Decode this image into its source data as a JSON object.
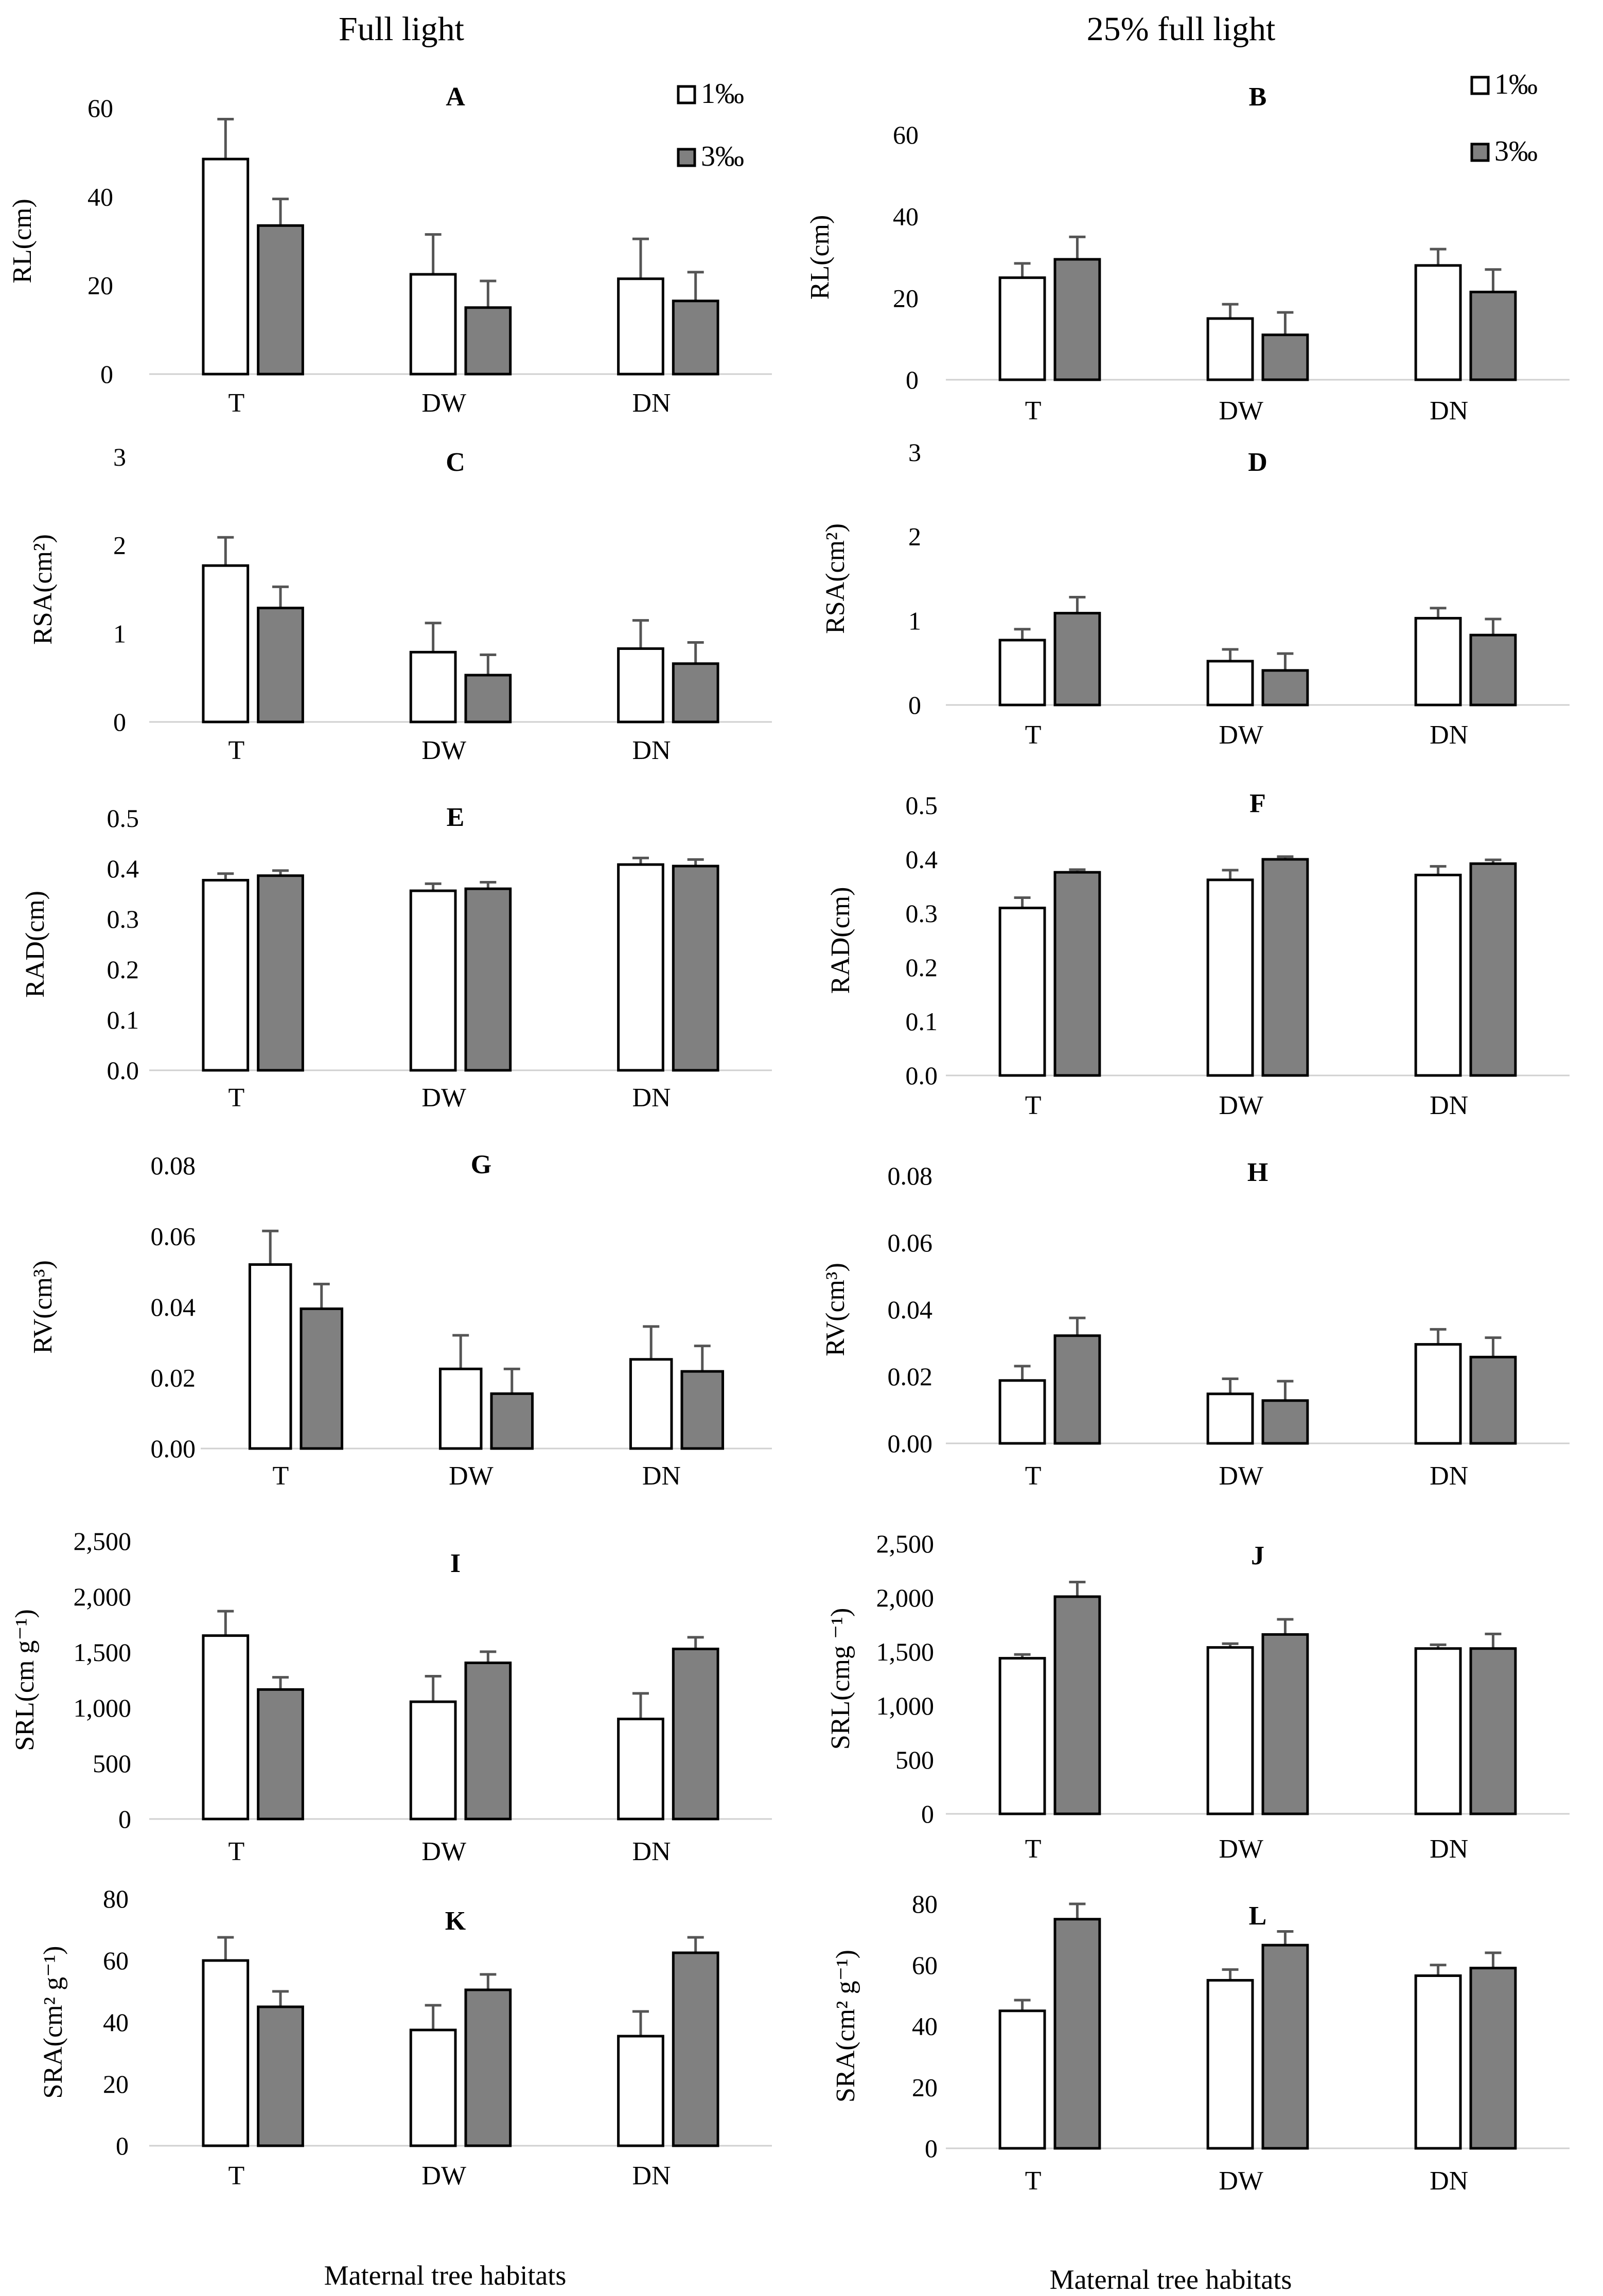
{
  "column_headers": [
    "Full light",
    "25% full light"
  ],
  "legend": [
    {
      "label": "1‰",
      "color": "#ffffff"
    },
    {
      "label": "3‰",
      "color": "#808080"
    }
  ],
  "xlabels": [
    "Maternal tree habitats",
    "Maternal tree habitats"
  ],
  "chart_data": [
    {
      "panel": "A",
      "type": "bar",
      "ylabel": "RL(cm)",
      "categories": [
        "T",
        "DW",
        "DN"
      ],
      "ylim": [
        0,
        60
      ],
      "yticks": [
        "0",
        "20",
        "40",
        "60"
      ],
      "series": [
        {
          "name": "1‰",
          "values": [
            48.5,
            22.5,
            21.5
          ],
          "errors": [
            9,
            9,
            9
          ]
        },
        {
          "name": "3‰",
          "values": [
            33.5,
            15,
            16.5
          ],
          "errors": [
            6,
            6,
            6.5
          ]
        }
      ]
    },
    {
      "panel": "B",
      "type": "bar",
      "ylabel": "RL(cm)",
      "categories": [
        "T",
        "DW",
        "DN"
      ],
      "ylim": [
        0,
        60
      ],
      "yticks": [
        "0",
        "20",
        "40",
        "60"
      ],
      "series": [
        {
          "name": "1‰",
          "values": [
            25,
            15,
            28
          ],
          "errors": [
            3.5,
            3.5,
            4
          ]
        },
        {
          "name": "3‰",
          "values": [
            29.5,
            11,
            21.5
          ],
          "errors": [
            5.5,
            5.5,
            5.5
          ]
        }
      ]
    },
    {
      "panel": "C",
      "type": "bar",
      "ylabel": "RSA(cm²)",
      "categories": [
        "T",
        "DW",
        "DN"
      ],
      "ylim": [
        0,
        3
      ],
      "yticks": [
        "0",
        "1",
        "2",
        "3"
      ],
      "series": [
        {
          "name": "1‰",
          "values": [
            1.77,
            0.79,
            0.83
          ],
          "errors": [
            0.32,
            0.33,
            0.32
          ]
        },
        {
          "name": "3‰",
          "values": [
            1.29,
            0.53,
            0.66
          ],
          "errors": [
            0.24,
            0.23,
            0.24
          ]
        }
      ]
    },
    {
      "panel": "D",
      "type": "bar",
      "ylabel": "RSA(cm²)",
      "categories": [
        "T",
        "DW",
        "DN"
      ],
      "ylim": [
        0,
        3
      ],
      "yticks": [
        "0",
        "1",
        "2",
        "3"
      ],
      "series": [
        {
          "name": "1‰",
          "values": [
            0.77,
            0.52,
            1.03
          ],
          "errors": [
            0.13,
            0.14,
            0.12
          ]
        },
        {
          "name": "3‰",
          "values": [
            1.09,
            0.41,
            0.83
          ],
          "errors": [
            0.19,
            0.2,
            0.19
          ]
        }
      ]
    },
    {
      "panel": "E",
      "type": "bar",
      "ylabel": "RAD(cm)",
      "categories": [
        "T",
        "DW",
        "DN"
      ],
      "ylim": [
        0,
        0.5
      ],
      "yticks": [
        "0.0",
        "0.1",
        "0.2",
        "0.3",
        "0.4",
        "0.5"
      ],
      "series": [
        {
          "name": "1‰",
          "values": [
            0.377,
            0.356,
            0.408
          ],
          "errors": [
            0.013,
            0.014,
            0.013
          ]
        },
        {
          "name": "3‰",
          "values": [
            0.386,
            0.36,
            0.405
          ],
          "errors": [
            0.01,
            0.013,
            0.013
          ]
        }
      ]
    },
    {
      "panel": "F",
      "type": "bar",
      "ylabel": "RAD(cm)",
      "categories": [
        "T",
        "DW",
        "DN"
      ],
      "ylim": [
        0,
        0.5
      ],
      "yticks": [
        "0.0",
        "0.1",
        "0.2",
        "0.3",
        "0.4",
        "0.5"
      ],
      "series": [
        {
          "name": "1‰",
          "values": [
            0.31,
            0.362,
            0.371
          ],
          "errors": [
            0.019,
            0.018,
            0.016
          ]
        },
        {
          "name": "3‰",
          "values": [
            0.376,
            0.4,
            0.392
          ],
          "errors": [
            0.005,
            0.005,
            0.007
          ]
        }
      ]
    },
    {
      "panel": "G",
      "type": "bar",
      "ylabel": "RV(cm³)",
      "categories": [
        "T",
        "DW",
        "DN"
      ],
      "ylim": [
        0,
        0.08
      ],
      "yticks": [
        "0.00",
        "0.02",
        "0.04",
        "0.06",
        "0.08"
      ],
      "series": [
        {
          "name": "1‰",
          "values": [
            0.052,
            0.0225,
            0.0252
          ],
          "errors": [
            0.0095,
            0.0095,
            0.0093
          ]
        },
        {
          "name": "3‰",
          "values": [
            0.0395,
            0.0155,
            0.0218
          ],
          "errors": [
            0.007,
            0.007,
            0.0072
          ]
        }
      ]
    },
    {
      "panel": "H",
      "type": "bar",
      "ylabel": "RV(cm³)",
      "categories": [
        "T",
        "DW",
        "DN"
      ],
      "ylim": [
        0,
        0.08
      ],
      "yticks": [
        "0.00",
        "0.02",
        "0.04",
        "0.06",
        "0.08"
      ],
      "series": [
        {
          "name": "1‰",
          "values": [
            0.0188,
            0.0148,
            0.0296
          ],
          "errors": [
            0.0043,
            0.0045,
            0.0045
          ]
        },
        {
          "name": "3‰",
          "values": [
            0.0322,
            0.0128,
            0.0258
          ],
          "errors": [
            0.0053,
            0.0058,
            0.0058
          ]
        }
      ]
    },
    {
      "panel": "I",
      "type": "bar",
      "ylabel": "SRL(cm g⁻¹)",
      "categories": [
        "T",
        "DW",
        "DN"
      ],
      "ylim": [
        0,
        2500
      ],
      "yticks": [
        "0",
        "500",
        "1,000",
        "1,500",
        "2,000",
        "2,500"
      ],
      "series": [
        {
          "name": "1‰",
          "values": [
            1650,
            1055,
            900
          ],
          "errors": [
            220,
            230,
            230
          ]
        },
        {
          "name": "3‰",
          "values": [
            1165,
            1405,
            1530
          ],
          "errors": [
            110,
            100,
            105
          ]
        }
      ]
    },
    {
      "panel": "J",
      "type": "bar",
      "ylabel": "SRL(cmg ⁻¹)",
      "categories": [
        "T",
        "DW",
        "DN"
      ],
      "ylim": [
        0,
        2500
      ],
      "yticks": [
        "0",
        "500",
        "1,000",
        "1,500",
        "2,000",
        "2,500"
      ],
      "series": [
        {
          "name": "1‰",
          "values": [
            1440,
            1540,
            1530
          ],
          "errors": [
            35,
            35,
            35
          ]
        },
        {
          "name": "3‰",
          "values": [
            2010,
            1660,
            1530
          ],
          "errors": [
            135,
            140,
            135
          ]
        }
      ]
    },
    {
      "panel": "K",
      "type": "bar",
      "ylabel": "SRA(cm² g⁻¹)",
      "categories": [
        "T",
        "DW",
        "DN"
      ],
      "ylim": [
        0,
        80
      ],
      "yticks": [
        "0",
        "20",
        "40",
        "60",
        "80"
      ],
      "series": [
        {
          "name": "1‰",
          "values": [
            60,
            37.5,
            35.5
          ],
          "errors": [
            7.5,
            8,
            8
          ]
        },
        {
          "name": "3‰",
          "values": [
            45,
            50.5,
            62.5
          ],
          "errors": [
            5,
            5,
            5
          ]
        }
      ]
    },
    {
      "panel": "L",
      "type": "bar",
      "ylabel": "SRA(cm² g⁻¹)",
      "categories": [
        "T",
        "DW",
        "DN"
      ],
      "ylim": [
        0,
        80
      ],
      "yticks": [
        "0",
        "20",
        "40",
        "60",
        "80"
      ],
      "series": [
        {
          "name": "1‰",
          "values": [
            45,
            55,
            56.5
          ],
          "errors": [
            3.5,
            3.5,
            3.5
          ]
        },
        {
          "name": "3‰",
          "values": [
            75,
            66.5,
            59
          ],
          "errors": [
            5,
            4.5,
            5
          ]
        }
      ]
    }
  ]
}
